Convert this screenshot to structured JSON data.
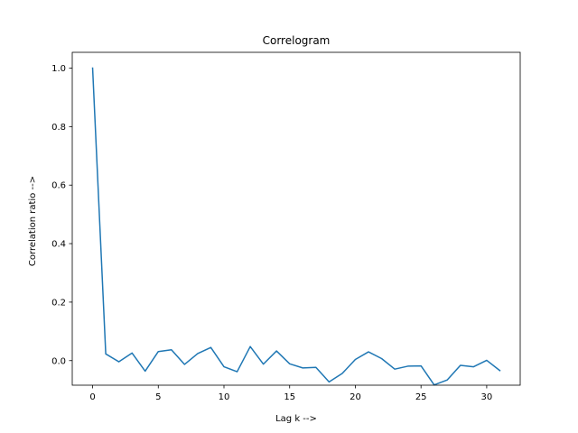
{
  "chart_data": {
    "type": "line",
    "title": "Correlogram",
    "xlabel": "Lag k -->",
    "ylabel": "Correlation ratio -->",
    "xlim": [
      -1.55,
      32.55
    ],
    "ylim": [
      -0.084,
      1.054
    ],
    "xticks": [
      0,
      5,
      10,
      15,
      20,
      25,
      30
    ],
    "yticks": [
      0.0,
      0.2,
      0.4,
      0.6,
      0.8,
      1.0
    ],
    "xtick_labels": [
      "0",
      "5",
      "10",
      "15",
      "20",
      "25",
      "30"
    ],
    "ytick_labels": [
      "0.0",
      "0.2",
      "0.4",
      "0.6",
      "0.8",
      "1.0"
    ],
    "grid": false,
    "series": [
      {
        "color": "#1f77b4",
        "x": [
          0,
          1,
          2,
          3,
          4,
          5,
          6,
          7,
          8,
          9,
          10,
          11,
          12,
          13,
          14,
          15,
          16,
          17,
          18,
          19,
          20,
          21,
          22,
          23,
          24,
          25,
          26,
          27,
          28,
          29,
          30,
          31
        ],
        "y": [
          1.0,
          0.023,
          -0.004,
          0.026,
          -0.036,
          0.031,
          0.037,
          -0.013,
          0.024,
          0.045,
          -0.021,
          -0.038,
          0.048,
          -0.012,
          0.033,
          -0.011,
          -0.025,
          -0.023,
          -0.073,
          -0.044,
          0.004,
          0.03,
          0.007,
          -0.029,
          -0.019,
          -0.018,
          -0.083,
          -0.066,
          -0.016,
          -0.021,
          0.001,
          -0.034
        ]
      }
    ]
  }
}
